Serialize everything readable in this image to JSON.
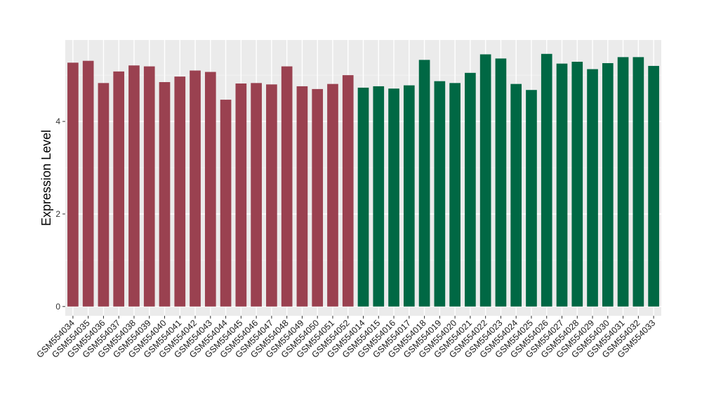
{
  "chart_data": {
    "type": "bar",
    "title": "",
    "xlabel": "",
    "ylabel": "Expression Level",
    "ylim": [
      -0.2,
      5.76
    ],
    "yticks": [
      0,
      2,
      4
    ],
    "grid": true,
    "legend": "none",
    "panel_background": "#ebebeb",
    "categories": [
      "GSM554034",
      "GSM554035",
      "GSM554036",
      "GSM554037",
      "GSM554038",
      "GSM554039",
      "GSM554040",
      "GSM554041",
      "GSM554042",
      "GSM554043",
      "GSM554044",
      "GSM554045",
      "GSM554046",
      "GSM554047",
      "GSM554048",
      "GSM554049",
      "GSM554050",
      "GSM554051",
      "GSM554052",
      "GSM554014",
      "GSM554015",
      "GSM554016",
      "GSM554017",
      "GSM554018",
      "GSM554019",
      "GSM554020",
      "GSM554021",
      "GSM554022",
      "GSM554023",
      "GSM554024",
      "GSM554025",
      "GSM554026",
      "GSM554027",
      "GSM554028",
      "GSM554029",
      "GSM554030",
      "GSM554031",
      "GSM554032",
      "GSM554033"
    ],
    "values": [
      5.27,
      5.31,
      4.83,
      5.08,
      5.21,
      5.19,
      4.85,
      4.97,
      5.1,
      5.07,
      4.47,
      4.82,
      4.83,
      4.8,
      5.19,
      4.76,
      4.7,
      4.81,
      5.0,
      4.73,
      4.76,
      4.71,
      4.78,
      5.33,
      4.87,
      4.83,
      5.05,
      5.45,
      5.36,
      4.81,
      4.68,
      5.46,
      5.25,
      5.29,
      5.13,
      5.26,
      5.39,
      5.39,
      5.2
    ],
    "bar_colors": [
      "#9a4150",
      "#9a4150",
      "#9a4150",
      "#9a4150",
      "#9a4150",
      "#9a4150",
      "#9a4150",
      "#9a4150",
      "#9a4150",
      "#9a4150",
      "#9a4150",
      "#9a4150",
      "#9a4150",
      "#9a4150",
      "#9a4150",
      "#9a4150",
      "#9a4150",
      "#9a4150",
      "#9a4150",
      "#006844",
      "#006844",
      "#006844",
      "#006844",
      "#006844",
      "#006844",
      "#006844",
      "#006844",
      "#006844",
      "#006844",
      "#006844",
      "#006844",
      "#006844",
      "#006844",
      "#006844",
      "#006844",
      "#006844",
      "#006844",
      "#006844",
      "#006844"
    ]
  }
}
